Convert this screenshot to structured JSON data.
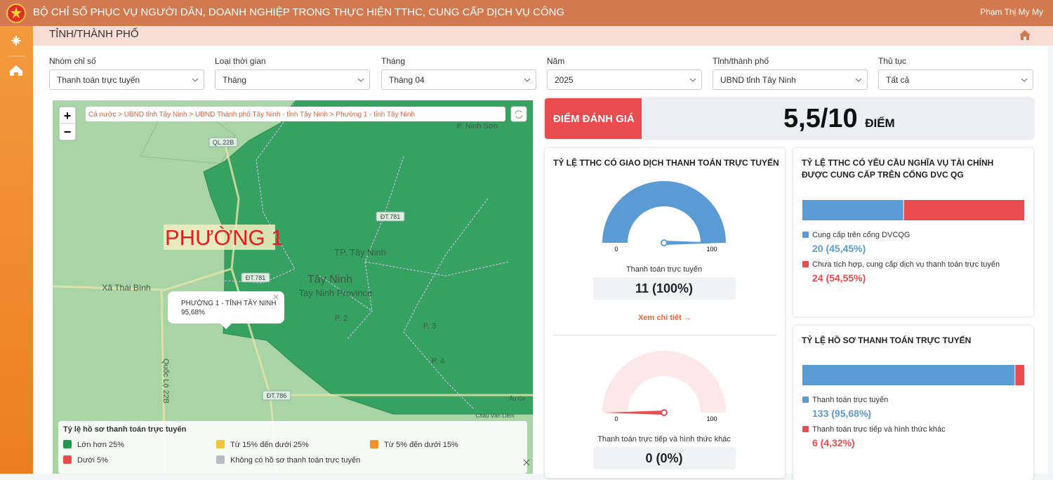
{
  "header": {
    "title": "BỘ CHỈ SỐ PHỤC VỤ NGƯỜI DÂN, DOANH NGHIỆP TRONG THỰC HIỆN TTHC, CUNG CẤP DỊCH VỤ CÔNG",
    "user": "Phạm Thị My My"
  },
  "page_title": "TỈNH/THÀNH PHỐ",
  "filters": [
    {
      "label": "Nhóm chỉ số",
      "value": "Thanh toán trực tuyến"
    },
    {
      "label": "Loại thời gian",
      "value": "Tháng"
    },
    {
      "label": "Tháng",
      "value": "Tháng 04"
    },
    {
      "label": "Năm",
      "value": "2025"
    },
    {
      "label": "Tỉnh/thành phố",
      "value": "UBND tỉnh Tây Ninh"
    },
    {
      "label": "Thủ tục",
      "value": "Tất cả"
    }
  ],
  "map": {
    "breadcrumb": "Cả nước > UBND tỉnh Tây Ninh > UBND Thành phố Tây Ninh - tỉnh Tây Ninh > Phường 1 - tỉnh Tây Ninh",
    "zoom_in": "+",
    "zoom_out": "−",
    "selected_label": "PHƯỜNG 1",
    "popup": {
      "title": "PHƯỜNG 1 - TỈNH TÂY NINH",
      "value": "95,68%"
    },
    "place_labels": [
      "P. Ninh Sơn",
      "QL.22B",
      "ĐT.781",
      "TP. Tây Ninh",
      "Tây Ninh",
      "Tay Ninh Province",
      "Xã Thái Bình",
      "ĐT.781",
      "P. 2",
      "P. 3",
      "P. 4",
      "ĐT.786",
      "Quốc Lộ 22B",
      "Âu Cơ",
      "Châu Văn Liêm"
    ],
    "legend": {
      "title": "Tỷ lệ hồ sơ thanh toán trực tuyến",
      "items": [
        {
          "label": "Lớn hơn 25%",
          "color": "#1f9a4e"
        },
        {
          "label": "Từ 15% đến dưới 25%",
          "color": "#f2c53d"
        },
        {
          "label": "Từ 5% đến dưới 15%",
          "color": "#f4902c"
        },
        {
          "label": "Dưới 5%",
          "color": "#e84c4f"
        },
        {
          "label": "Không có hồ sơ thanh toán trực tuyến",
          "color": "#b4bcc4"
        }
      ]
    }
  },
  "score": {
    "label": "ĐIỂM ĐÁNH GIÁ",
    "value": "5,5/10",
    "unit": "ĐIỂM"
  },
  "gauge_card": {
    "title": "TỶ LỆ TTHC CÓ GIAO DỊCH THANH TOÁN TRỰC TUYẾN",
    "link": "Xem chi tiết →",
    "gauges": [
      {
        "min": 0,
        "max": 100,
        "value": 100,
        "color": "#5b9bd5",
        "track": "#d6e6f5",
        "caption": "Thanh toán trực tuyến",
        "value_label": "11 (100%)"
      },
      {
        "min": 0,
        "max": 100,
        "value": 0,
        "color": "#e84c4f",
        "track": "#fde8e8",
        "caption": "Thanh toán trực tiếp và hình thức khác",
        "value_label": "0 (0%)"
      }
    ]
  },
  "bar_cards": [
    {
      "title": "TỶ LỆ TTHC CÓ YÊU CẦU NGHĨA VỤ TÀI CHÍNH ĐƯỢC CUNG CẤP TRÊN CỔNG DVC QG",
      "xlim": [
        0,
        100
      ],
      "segments": [
        {
          "name": "Cung cấp trên cổng DVCQG",
          "value": 45.45,
          "value_label": "20 (45,45%)",
          "color": "#5b9bd5"
        },
        {
          "name": "Chưa tích hợp, cung cấp dịch vụ thanh toán trực tuyến",
          "value": 54.55,
          "value_label": "24 (54,55%)",
          "color": "#e84c4f"
        }
      ]
    },
    {
      "title": "TỶ LỆ HỒ SƠ THANH TOÁN TRỰC TUYẾN",
      "xlim": [
        0,
        100
      ],
      "segments": [
        {
          "name": "Thanh toán trực tuyến",
          "value": 95.68,
          "value_label": "133 (95,68%)",
          "color": "#5b9bd5"
        },
        {
          "name": "Thanh toán trực tiếp và hình thức khác",
          "value": 4.32,
          "value_label": "6 (4,32%)",
          "color": "#e84c4f"
        }
      ]
    }
  ]
}
